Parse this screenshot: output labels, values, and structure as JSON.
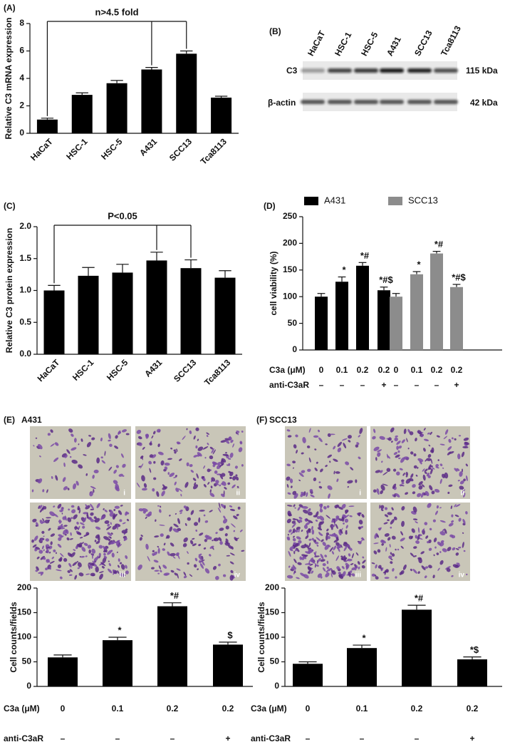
{
  "chart_data": [
    {
      "type": "bar",
      "panel_label": "(A)",
      "ylabel": "Relative C3 mRNA expression",
      "annotation": "n>4.5 fold",
      "categories": [
        "HaCaT",
        "HSC-1",
        "HSC-5",
        "A431",
        "SCC13",
        "Tca8113"
      ],
      "values": [
        1.0,
        2.8,
        3.65,
        4.65,
        5.8,
        2.6
      ],
      "errors": [
        0.1,
        0.15,
        0.2,
        0.15,
        0.2,
        0.1
      ],
      "color": "#000000",
      "ylim": [
        0,
        8
      ],
      "yticks": [
        0,
        2,
        4,
        6,
        8
      ]
    },
    {
      "type": "bar",
      "panel_label": "(C)",
      "ylabel": "Relative C3 protein expression",
      "annotation": "P<0.05",
      "categories": [
        "HaCaT",
        "HSC-1",
        "HSC-5",
        "A431",
        "SCC13",
        "Tca8113"
      ],
      "values": [
        1.0,
        1.23,
        1.28,
        1.47,
        1.35,
        1.2
      ],
      "errors": [
        0.08,
        0.13,
        0.13,
        0.13,
        0.13,
        0.11
      ],
      "color": "#000000",
      "ylim": [
        0,
        2
      ],
      "yticks": [
        {
          "value": 0,
          "label": "0.0"
        },
        {
          "value": 0.5,
          "label": "0.5"
        },
        {
          "value": 1,
          "label": "1.0"
        },
        {
          "value": 1.5,
          "label": "1.5"
        },
        {
          "value": 2,
          "label": "2.0"
        }
      ]
    },
    {
      "type": "bar",
      "panel_label": "(D)",
      "ylabel": "cell viability (%)",
      "category_label": "C3a (μM)",
      "categories": [
        "0",
        "0.1",
        "0.2",
        "0.2"
      ],
      "row2_label": "anti-C3aR",
      "row2": [
        "–",
        "–",
        "–",
        "+"
      ],
      "series": [
        {
          "name": "A431",
          "color": "#000000",
          "values": [
            100,
            128,
            158,
            112
          ],
          "errors": [
            6,
            9,
            6,
            6
          ],
          "value_annotations": [
            null,
            "*",
            "*#",
            "*#$"
          ]
        },
        {
          "name": "SCC13",
          "color": "#8c8c8c",
          "values": [
            100,
            142,
            181,
            118
          ],
          "errors": [
            6,
            5,
            4,
            5
          ],
          "value_annotations": [
            null,
            "*",
            "*#",
            "*#$"
          ]
        }
      ],
      "ylim": [
        0,
        250
      ],
      "yticks": [
        0,
        50,
        100,
        150,
        200,
        250
      ]
    },
    {
      "type": "bar",
      "panel_label": "(E)",
      "panel_title": "A431",
      "images": [
        "i",
        "ii",
        "iii",
        "iv"
      ],
      "ylabel": "Cell counts/fields",
      "category_label": "C3a (μM)",
      "categories": [
        "0",
        "0.1",
        "0.2",
        "0.2"
      ],
      "row2_label": "anti-C3aR",
      "row2": [
        "–",
        "–",
        "–",
        "+"
      ],
      "values": [
        59,
        94,
        163,
        85
      ],
      "errors": [
        5,
        6,
        7,
        5
      ],
      "value_annotations": [
        null,
        "*",
        "*#",
        "$"
      ],
      "color": "#000000",
      "ylim": [
        0,
        200
      ],
      "yticks": [
        0,
        50,
        100,
        150,
        200
      ]
    },
    {
      "type": "bar",
      "panel_label": "(F)",
      "panel_title": "SCC13",
      "images": [
        "i",
        "ii",
        "iii",
        "iv"
      ],
      "ylabel": "Cell counts/fields",
      "category_label": "C3a (μM)",
      "categories": [
        "0",
        "0.1",
        "0.2",
        "0.2"
      ],
      "row2_label": "anti-C3aR",
      "row2": [
        "–",
        "–",
        "–",
        "+"
      ],
      "values": [
        46,
        78,
        156,
        55
      ],
      "errors": [
        4,
        6,
        9,
        5
      ],
      "value_annotations": [
        null,
        "*",
        "*#",
        "*$"
      ],
      "color": "#000000",
      "ylim": [
        0,
        200
      ],
      "yticks": [
        0,
        50,
        100,
        150,
        200
      ]
    }
  ],
  "blot": {
    "panel_label": "(B)",
    "lanes": [
      "HaCaT",
      "HSC-1",
      "HSC-5",
      "A431",
      "SCC13",
      "Tca8113"
    ],
    "rows": [
      {
        "name": "C3",
        "size": "115 kDa"
      },
      {
        "name": "β-actin",
        "size": "42 kDa"
      }
    ]
  }
}
